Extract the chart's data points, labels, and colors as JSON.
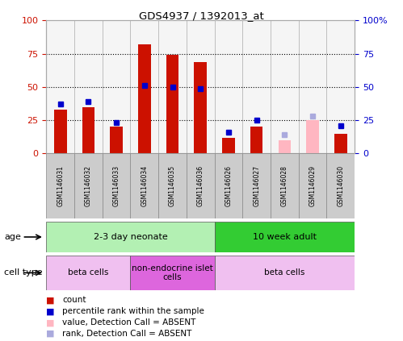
{
  "title": "GDS4937 / 1392013_at",
  "samples": [
    "GSM1146031",
    "GSM1146032",
    "GSM1146033",
    "GSM1146034",
    "GSM1146035",
    "GSM1146036",
    "GSM1146026",
    "GSM1146027",
    "GSM1146028",
    "GSM1146029",
    "GSM1146030"
  ],
  "counts": [
    33,
    35,
    20,
    82,
    74,
    69,
    12,
    20,
    null,
    null,
    15
  ],
  "counts_absent": [
    null,
    null,
    null,
    null,
    null,
    null,
    null,
    null,
    10,
    25,
    null
  ],
  "percentile": [
    37,
    39,
    23,
    51,
    50,
    49,
    16,
    25,
    null,
    null,
    21
  ],
  "percentile_absent": [
    null,
    null,
    null,
    null,
    null,
    null,
    null,
    null,
    14,
    28,
    null
  ],
  "age_groups": [
    {
      "label": "2-3 day neonate",
      "start": 0,
      "end": 6,
      "color": "#b3f0b3"
    },
    {
      "label": "10 week adult",
      "start": 6,
      "end": 11,
      "color": "#33cc33"
    }
  ],
  "cell_type_groups": [
    {
      "label": "beta cells",
      "start": 0,
      "end": 3,
      "color": "#f0c0f0"
    },
    {
      "label": "non-endocrine islet\ncells",
      "start": 3,
      "end": 6,
      "color": "#dd66dd"
    },
    {
      "label": "beta cells",
      "start": 6,
      "end": 11,
      "color": "#f0c0f0"
    }
  ],
  "bar_color": "#cc1100",
  "bar_absent_color": "#ffb6c1",
  "dot_color": "#0000cc",
  "dot_absent_color": "#aaaadd",
  "plot_bg_color": "#f5f5f5",
  "tick_color_left": "#cc1100",
  "tick_color_right": "#0000cc",
  "label_row_bg": "#cccccc"
}
